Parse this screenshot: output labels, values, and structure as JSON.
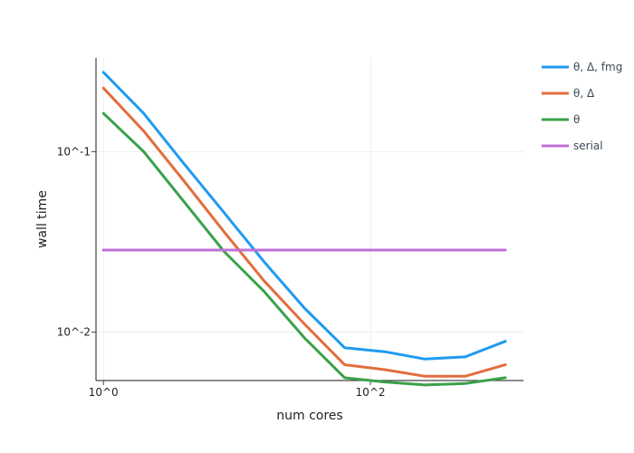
{
  "chart_data": {
    "type": "line",
    "title": "",
    "xlabel": "num cores",
    "ylabel": "wall time",
    "x_scale": "log",
    "y_scale": "log",
    "xlim": [
      0.88,
      1400
    ],
    "ylim": [
      0.0054,
      0.33
    ],
    "x_ticks": [
      {
        "value": 1,
        "label": "10^0"
      },
      {
        "value": 100,
        "label": "10^2"
      }
    ],
    "y_ticks": [
      {
        "value": 0.1,
        "label": "10^-1"
      },
      {
        "value": 0.01,
        "label": "10^-2"
      }
    ],
    "grid": true,
    "legend_position": "top-right",
    "x": [
      1,
      2,
      4,
      8,
      16,
      32,
      64,
      128,
      256,
      512,
      1024
    ],
    "series": [
      {
        "name": "θ, Δ, fmg",
        "color": "#1f9bf0",
        "values": [
          0.275,
          0.163,
          0.086,
          0.046,
          0.0245,
          0.0136,
          0.0082,
          0.0078,
          0.0071,
          0.0073,
          0.0089
        ]
      },
      {
        "name": "θ, Δ",
        "color": "#e36d3e",
        "values": [
          0.225,
          0.13,
          0.069,
          0.036,
          0.0192,
          0.0111,
          0.0066,
          0.0062,
          0.0057,
          0.0057,
          0.0066
        ]
      },
      {
        "name": "θ",
        "color": "#3aa14a",
        "values": [
          0.163,
          0.1,
          0.053,
          0.028,
          0.0168,
          0.0093,
          0.0056,
          0.0053,
          0.0051,
          0.0052,
          0.0056
        ]
      },
      {
        "name": "serial",
        "color": "#bf6fd8",
        "values": [
          0.0285,
          0.0285,
          0.0285,
          0.0285,
          0.0285,
          0.0285,
          0.0285,
          0.0285,
          0.0285,
          0.0285,
          0.0285
        ]
      }
    ]
  }
}
